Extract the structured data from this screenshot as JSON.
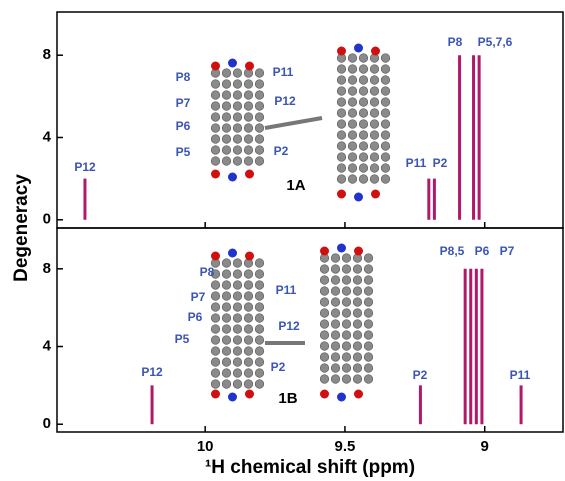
{
  "chart_data": [
    {
      "type": "stick",
      "compound": "1A",
      "x": [
        10.43,
        9.2,
        9.18,
        9.09,
        9.04,
        9.02
      ],
      "values": [
        2,
        2,
        2,
        8,
        8,
        8
      ],
      "color": "#b0186a",
      "peak_labels": [
        "P12",
        "P11",
        "P2",
        "P8",
        "P5,7,6"
      ],
      "structure_labels": [
        "P8",
        "P7",
        "P6",
        "P5",
        "P11",
        "P12",
        "P2"
      ],
      "xlim": [
        10.53,
        8.72
      ],
      "xticks": [
        10,
        9.5,
        9
      ],
      "ylim": [
        -0.4,
        10.1
      ],
      "yticks": [
        0,
        4,
        8
      ]
    },
    {
      "type": "stick",
      "compound": "1B",
      "x": [
        10.19,
        9.23,
        9.07,
        9.05,
        9.03,
        9.01,
        8.87
      ],
      "values": [
        2,
        2,
        8,
        8,
        8,
        8,
        2
      ],
      "color": "#b0186a",
      "peak_labels": [
        "P12",
        "P2",
        "P8,5",
        "P6",
        "P7",
        "P11"
      ],
      "structure_labels": [
        "P8",
        "P7",
        "P6",
        "P5",
        "P11",
        "P12",
        "P2"
      ],
      "xlim": [
        10.53,
        8.72
      ],
      "xticks": [
        10,
        9.5,
        9
      ],
      "ylim": [
        -0.4,
        10.1
      ],
      "yticks": [
        0,
        4,
        8
      ]
    }
  ],
  "y_label": "Degeneracy",
  "x_label": "¹H chemical shift (ppm)"
}
